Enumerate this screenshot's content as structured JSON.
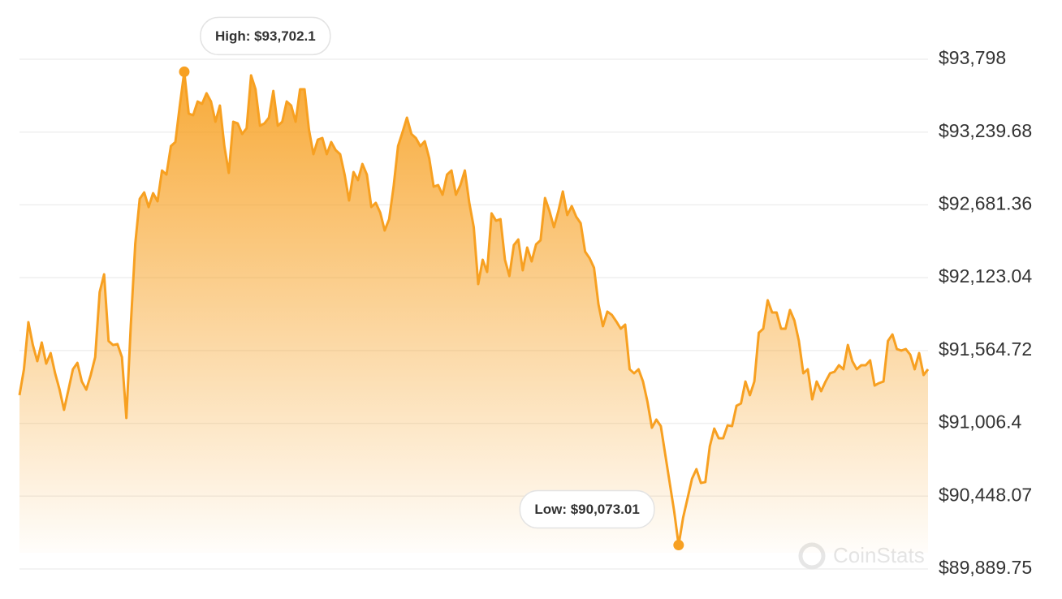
{
  "chart_data": {
    "type": "area",
    "color": "#f7a021",
    "ylim": [
      89889.75,
      93798
    ],
    "yticks": [
      {
        "value": 93798,
        "label": "$93,798"
      },
      {
        "value": 93239.68,
        "label": "$93,239.68"
      },
      {
        "value": 92681.36,
        "label": "$92,681.36"
      },
      {
        "value": 92123.04,
        "label": "$92,123.04"
      },
      {
        "value": 91564.72,
        "label": "$91,564.72"
      },
      {
        "value": 91006.4,
        "label": "$91,006.4"
      },
      {
        "value": 90448.07,
        "label": "$90,448.07"
      },
      {
        "value": 89889.75,
        "label": "$89,889.75"
      }
    ],
    "grid": true,
    "values": [
      91222,
      91421,
      91782,
      91607,
      91483,
      91626,
      91464,
      91545,
      91390,
      91265,
      91110,
      91265,
      91421,
      91470,
      91327,
      91265,
      91377,
      91514,
      92012,
      92149,
      91638,
      91607,
      91614,
      91514,
      91047,
      91763,
      92385,
      92728,
      92777,
      92665,
      92771,
      92709,
      92945,
      92914,
      93132,
      93163,
      93443,
      93702.1,
      93381,
      93369,
      93474,
      93456,
      93537,
      93474,
      93319,
      93443,
      93132,
      92927,
      93319,
      93306,
      93225,
      93269,
      93674,
      93568,
      93288,
      93306,
      93350,
      93555,
      93288,
      93319,
      93474,
      93443,
      93319,
      93568,
      93568,
      93257,
      93070,
      93182,
      93194,
      93070,
      93163,
      93101,
      93070,
      92914,
      92715,
      92933,
      92871,
      92995,
      92914,
      92665,
      92697,
      92622,
      92485,
      92572,
      92821,
      93132,
      93238,
      93350,
      93225,
      93194,
      93132,
      93169,
      93039,
      92821,
      92833,
      92759,
      92914,
      92945,
      92759,
      92833,
      92945,
      92697,
      92510,
      92074,
      92261,
      92167,
      92616,
      92560,
      92572,
      92261,
      92136,
      92373,
      92416,
      92180,
      92354,
      92248,
      92379,
      92410,
      92734,
      92634,
      92510,
      92634,
      92784,
      92603,
      92672,
      92591,
      92541,
      92323,
      92273,
      92199,
      91919,
      91751,
      91863,
      91838,
      91788,
      91732,
      91763,
      91421,
      91390,
      91421,
      91327,
      91172,
      90973,
      91035,
      90985,
      90767,
      90549,
      90332,
      90073.01,
      90282,
      90431,
      90581,
      90655,
      90549,
      90556,
      90830,
      90966,
      90892,
      90892,
      90991,
      90985,
      91141,
      91159,
      91327,
      91222,
      91327,
      91701,
      91732,
      91950,
      91856,
      91856,
      91732,
      91732,
      91875,
      91794,
      91638,
      91390,
      91421,
      91190,
      91327,
      91253,
      91327,
      91390,
      91402,
      91452,
      91421,
      91607,
      91483,
      91421,
      91452,
      91452,
      91489,
      91296,
      91315,
      91327,
      91638,
      91688,
      91576,
      91564,
      91576,
      91533,
      91421,
      91545,
      91377,
      91421
    ],
    "annotations": [
      {
        "label": "High: $93,702.1",
        "value": 93702.1
      },
      {
        "label": "Low: $90,073.01",
        "value": 90073.01
      }
    ],
    "watermark": "CoinStats"
  }
}
